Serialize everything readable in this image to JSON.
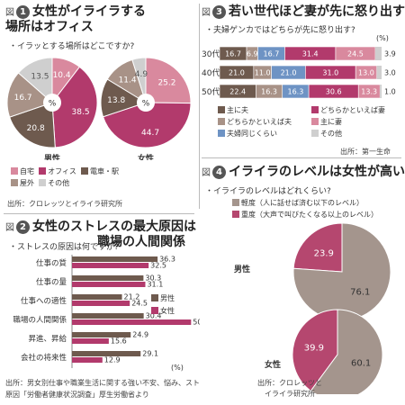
{
  "colors": {
    "pink_light": "#d9899e",
    "magenta": "#b23a6c",
    "brown_dark": "#6e5a4e",
    "taupe": "#a89287",
    "grey_light": "#cfcfcf",
    "blue": "#6e93c4",
    "pie_grey_bg": "#a4958d",
    "pie_pink_bg": "#b5476f"
  },
  "fig1": {
    "prefix": "図",
    "number": "1",
    "title_line1": "女性がイライラする",
    "title_line2": "場所はオフィス",
    "question": "・イラッとする場所はどこですか?",
    "source": "出所：クロレッツとイライラ研究所",
    "center_symbol": "%"
  },
  "fig2": {
    "prefix": "図",
    "number": "2",
    "title_line1": "女性のストレスの最大原因は",
    "title_line2": "職場の人間関係",
    "question": "・ストレスの原因は何ですか?",
    "unit": "(%)",
    "source_line1": "出所：男女別仕事や職業生活に関する強い不安、悩み、ストレスの",
    "source_line2": "原因「労働者健康状況調査」厚生労働省より"
  },
  "fig3": {
    "prefix": "図",
    "number": "3",
    "title": "若い世代ほど妻が先に怒り出す",
    "question": "・夫婦ゲンカではどちらが先に怒り出す?",
    "unit": "(%)",
    "source": "出所：第一生命"
  },
  "fig4": {
    "prefix": "図",
    "number": "4",
    "title": "イライラのレベルは女性が高い",
    "question": "・イライラのレベルはどれくらい?",
    "source_line1": "出所：クロレッツと",
    "source_line2": "イライラ研究所"
  },
  "chart_data": [
    {
      "type": "pie",
      "title": "女性がイラッとする場所はオフィス",
      "unit": "%",
      "legend": [
        "自宅",
        "オフィス",
        "電車・駅",
        "屋外",
        "その他"
      ],
      "series": [
        {
          "name": "男性",
          "labels": [
            "自宅",
            "オフィス",
            "電車・駅",
            "屋外",
            "その他"
          ],
          "values": [
            10.4,
            38.5,
            20.8,
            16.7,
            13.5
          ]
        },
        {
          "name": "女性",
          "labels": [
            "自宅",
            "オフィス",
            "電車・駅",
            "屋外",
            "その他"
          ],
          "values": [
            25.2,
            44.7,
            13.8,
            11.4,
            4.9
          ]
        }
      ]
    },
    {
      "type": "bar",
      "title": "女性のストレスの最大原因は職場の人間関係",
      "unit": "%",
      "categories": [
        "仕事の質",
        "仕事の量",
        "仕事への適性",
        "職場の人間関係",
        "昇進、昇給",
        "会社の将来性"
      ],
      "series": [
        {
          "name": "男性",
          "values": [
            36.3,
            30.3,
            21.2,
            30.4,
            24.9,
            29.1
          ]
        },
        {
          "name": "女性",
          "values": [
            32.5,
            31.1,
            24.5,
            50.5,
            15.6,
            12.9
          ]
        }
      ]
    },
    {
      "type": "bar",
      "stacked": true,
      "title": "若い世代ほど妻が先に怒り出す",
      "unit": "%",
      "categories": [
        "30代",
        "40代",
        "50代"
      ],
      "series": [
        {
          "name": "主に夫",
          "values": [
            16.7,
            21.0,
            22.4
          ]
        },
        {
          "name": "どちらかといえば夫",
          "values": [
            6.9,
            11.0,
            16.3
          ]
        },
        {
          "name": "夫婦同じくらい",
          "values": [
            16.7,
            21.0,
            16.3
          ]
        },
        {
          "name": "どちらかといえば妻",
          "values": [
            31.4,
            31.0,
            30.6
          ]
        },
        {
          "name": "主に妻",
          "values": [
            24.5,
            13.0,
            13.3
          ]
        },
        {
          "name": "その他",
          "values": [
            3.9,
            3.0,
            1.0
          ]
        }
      ]
    },
    {
      "type": "pie",
      "title": "イライラのレベルは女性が高い",
      "unit": "%",
      "legend": [
        "軽度（人に話せば済む以下のレベル）",
        "重度（大声で叫びたくなる以上のレベル）"
      ],
      "series": [
        {
          "name": "男性",
          "labels": [
            "重度",
            "軽度"
          ],
          "values": [
            23.9,
            76.1
          ]
        },
        {
          "name": "女性",
          "labels": [
            "重度",
            "軽度"
          ],
          "values": [
            39.9,
            60.1
          ]
        }
      ]
    }
  ]
}
